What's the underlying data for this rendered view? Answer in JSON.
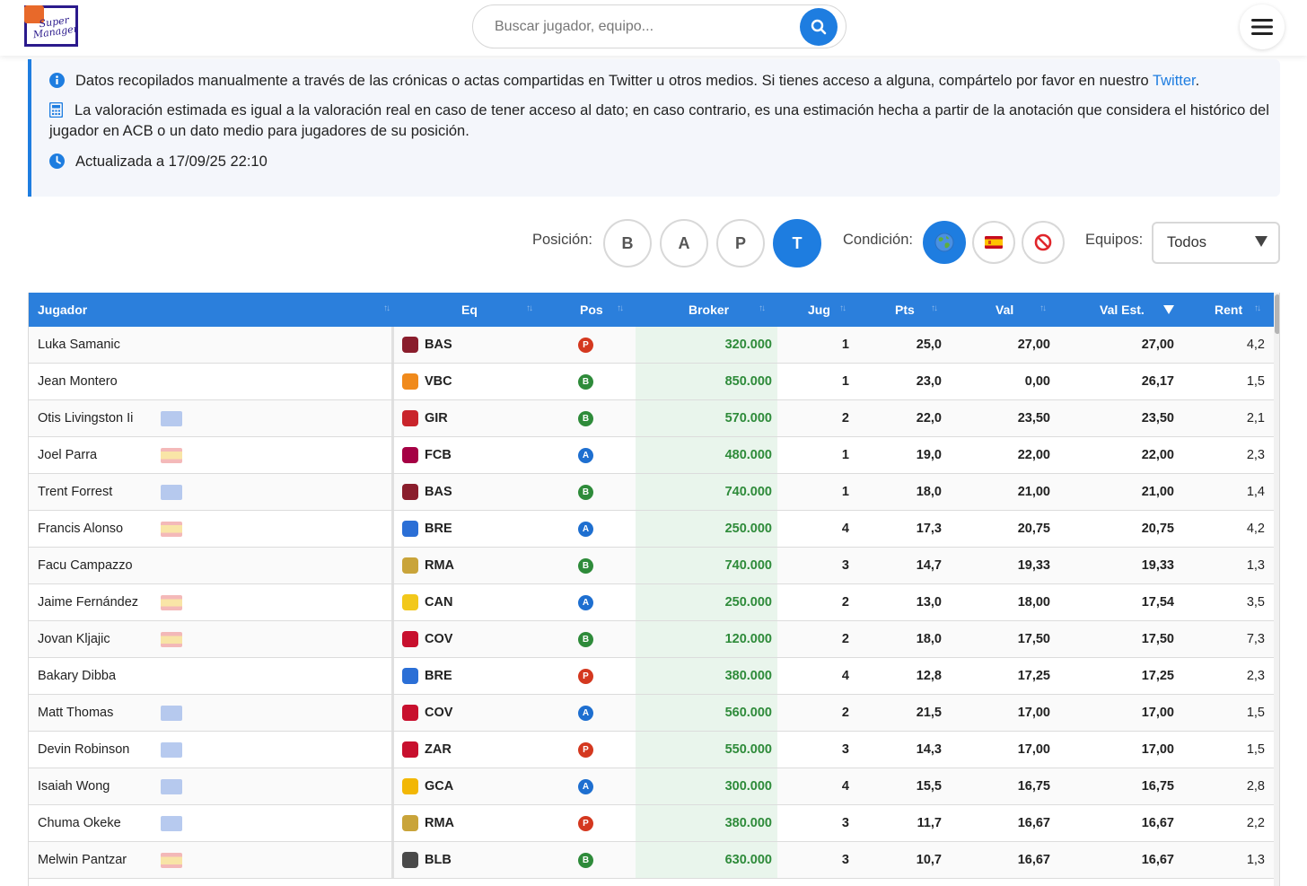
{
  "header": {
    "logo_text": "Super Manager",
    "search_placeholder": "Buscar jugador, equipo..."
  },
  "info": {
    "line1_text": "Datos recopilados manualmente a través de las crónicas o actas compartidas en Twitter u otros medios. Si tienes acceso a alguna, compártelo por favor en nuestro ",
    "line1_link": "Twitter",
    "line1_end": ".",
    "line2_text": "La valoración estimada es igual a la valoración real en caso de tener acceso al dato; en caso contrario, es una estimación hecha a partir de la anotación que considera el histórico del jugador en ACB o un dato medio para jugadores de su posición.",
    "line3_text": "Actualizada a 17/09/25 22:10"
  },
  "filters": {
    "posicion_label": "Posición:",
    "positions": [
      "B",
      "A",
      "P",
      "T"
    ],
    "active_position": "T",
    "condicion_label": "Condición:",
    "conditions": [
      "world-icon",
      "spain-flag-icon",
      "forbidden-icon"
    ],
    "active_condition": "world-icon",
    "equipos_label": "Equipos:",
    "equipos_value": "Todos"
  },
  "table": {
    "headers": {
      "jugador": "Jugador",
      "eq": "Eq",
      "pos": "Pos",
      "broker": "Broker",
      "jug": "Jug",
      "pts": "Pts",
      "val": "Val",
      "val_est": "Val Est.",
      "rent": "Rent"
    },
    "rows": [
      {
        "name": "Luka Samanic",
        "flag": "",
        "team": "BAS",
        "team_color": "#8a1d2c",
        "pos": "P",
        "broker": "320.000",
        "jug": "1",
        "pts": "25,0",
        "val": "27,00",
        "val_est": "27,00",
        "rent": "4,2"
      },
      {
        "name": "Jean Montero",
        "flag": "",
        "team": "VBC",
        "team_color": "#f08a1c",
        "pos": "B",
        "broker": "850.000",
        "jug": "1",
        "pts": "23,0",
        "val": "0,00",
        "val_est": "26,17",
        "rent": "1,5"
      },
      {
        "name": "Otis Livingston Ii",
        "flag": "eu",
        "team": "GIR",
        "team_color": "#c9242b",
        "pos": "B",
        "broker": "570.000",
        "jug": "2",
        "pts": "22,0",
        "val": "23,50",
        "val_est": "23,50",
        "rent": "2,1"
      },
      {
        "name": "Joel Parra",
        "flag": "es",
        "team": "FCB",
        "team_color": "#a50044",
        "pos": "A",
        "broker": "480.000",
        "jug": "1",
        "pts": "19,0",
        "val": "22,00",
        "val_est": "22,00",
        "rent": "2,3"
      },
      {
        "name": "Trent Forrest",
        "flag": "eu",
        "team": "BAS",
        "team_color": "#8a1d2c",
        "pos": "B",
        "broker": "740.000",
        "jug": "1",
        "pts": "18,0",
        "val": "21,00",
        "val_est": "21,00",
        "rent": "1,4"
      },
      {
        "name": "Francis Alonso",
        "flag": "es",
        "team": "BRE",
        "team_color": "#2b6fd6",
        "pos": "A",
        "broker": "250.000",
        "jug": "4",
        "pts": "17,3",
        "val": "20,75",
        "val_est": "20,75",
        "rent": "4,2"
      },
      {
        "name": "Facu Campazzo",
        "flag": "",
        "team": "RMA",
        "team_color": "#c9a43a",
        "pos": "B",
        "broker": "740.000",
        "jug": "3",
        "pts": "14,7",
        "val": "19,33",
        "val_est": "19,33",
        "rent": "1,3"
      },
      {
        "name": "Jaime Fernández",
        "flag": "es",
        "team": "CAN",
        "team_color": "#f2c81b",
        "pos": "A",
        "broker": "250.000",
        "jug": "2",
        "pts": "13,0",
        "val": "18,00",
        "val_est": "17,54",
        "rent": "3,5"
      },
      {
        "name": "Jovan Kljajic",
        "flag": "es",
        "team": "COV",
        "team_color": "#c8102e",
        "pos": "B",
        "broker": "120.000",
        "jug": "2",
        "pts": "18,0",
        "val": "17,50",
        "val_est": "17,50",
        "rent": "7,3"
      },
      {
        "name": "Bakary Dibba",
        "flag": "",
        "team": "BRE",
        "team_color": "#2b6fd6",
        "pos": "P",
        "broker": "380.000",
        "jug": "4",
        "pts": "12,8",
        "val": "17,25",
        "val_est": "17,25",
        "rent": "2,3"
      },
      {
        "name": "Matt Thomas",
        "flag": "eu",
        "team": "COV",
        "team_color": "#c8102e",
        "pos": "A",
        "broker": "560.000",
        "jug": "2",
        "pts": "21,5",
        "val": "17,00",
        "val_est": "17,00",
        "rent": "1,5"
      },
      {
        "name": "Devin Robinson",
        "flag": "eu",
        "team": "ZAR",
        "team_color": "#c8102e",
        "pos": "P",
        "broker": "550.000",
        "jug": "3",
        "pts": "14,3",
        "val": "17,00",
        "val_est": "17,00",
        "rent": "1,5"
      },
      {
        "name": "Isaiah Wong",
        "flag": "eu",
        "team": "GCA",
        "team_color": "#f2b705",
        "pos": "A",
        "broker": "300.000",
        "jug": "4",
        "pts": "15,5",
        "val": "16,75",
        "val_est": "16,75",
        "rent": "2,8"
      },
      {
        "name": "Chuma Okeke",
        "flag": "eu",
        "team": "RMA",
        "team_color": "#c9a43a",
        "pos": "P",
        "broker": "380.000",
        "jug": "3",
        "pts": "11,7",
        "val": "16,67",
        "val_est": "16,67",
        "rent": "2,2"
      },
      {
        "name": "Melwin Pantzar",
        "flag": "es",
        "team": "BLB",
        "team_color": "#4a4a4a",
        "pos": "B",
        "broker": "630.000",
        "jug": "3",
        "pts": "10,7",
        "val": "16,67",
        "val_est": "16,67",
        "rent": "1,3"
      }
    ]
  },
  "colors": {
    "accent": "#1e7de0",
    "header_bg": "#2b7fdc",
    "broker_text": "#2e8b3a",
    "broker_bg": "#e9f5ec"
  }
}
